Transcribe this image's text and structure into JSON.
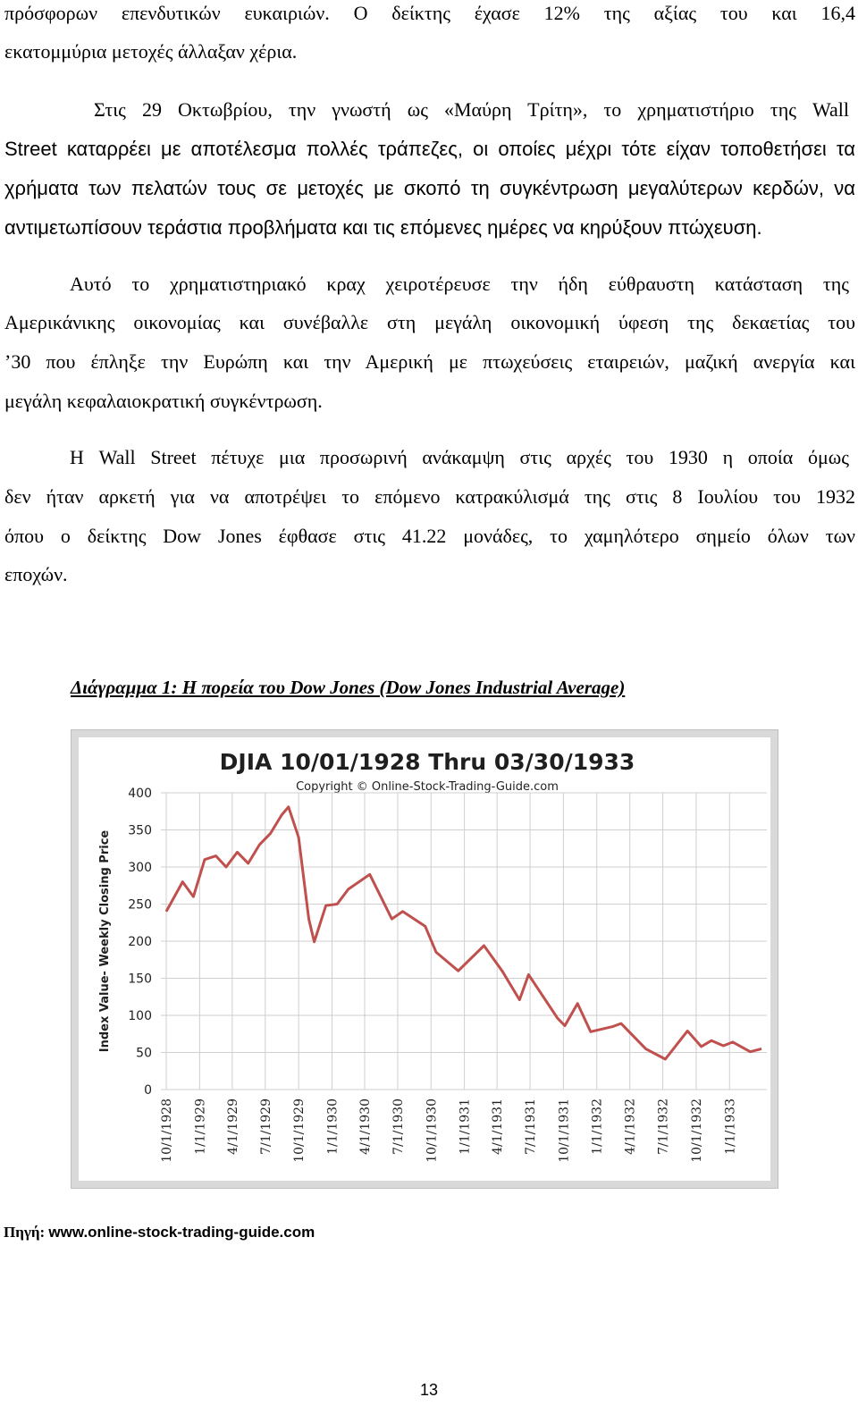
{
  "body": {
    "lines": [
      "πρόσφορων επενδυτικών ευκαιριών. Ο δείκτης έχασε 12% της αξίας του και 16,4",
      "εκατομμύρια μετοχές άλλαξαν χέρια.",
      "Στις 29 Οκτωβρίου, την γνωστή ως «Μαύρη Τρίτη», το χρηματιστήριο της Wall",
      "Street καταρρέει με αποτέλεσμα πολλές τράπεζες, οι οποίες μέχρι τότε είχαν τοποθετήσει τα",
      "χρήματα των πελατών τους σε μετοχές με σκοπό τη συγκέντρωση μεγαλύτερων κερδών, να",
      "αντιμετωπίσουν τεράστια προβλήματα και τις επόμενες ημέρες να κηρύξουν πτώχευση.",
      "Αυτό το χρηματιστηριακό κραχ χειροτέρευσε την ήδη εύθραυστη κατάσταση της",
      "Αμερικάνικης οικονομίας και συνέβαλλε στη μεγάλη οικονομική ύφεση της δεκαετίας του",
      "’30 που έπληξε την Ευρώπη και την Αμερική με πτωχεύσεις εταιρειών, μαζική ανεργία και",
      "μεγάλη κεφαλαιοκρατική συγκέντρωση.",
      "Η Wall Street πέτυχε μια προσωρινή ανάκαμψη στις αρχές του 1930 η οποία όμως",
      "δεν ήταν αρκετή για να αποτρέψει το επόμενο κατρακύλισμά της στις 8 Ιουλίου του 1932",
      "όπου ο δείκτης Dow Jones έφθασε στις 41.22 μονάδες, το χαμηλότερο σημείο όλων των",
      "εποχών."
    ]
  },
  "figure": {
    "caption": "Διάγραμμα 1: Η πορεία του Dow Jones (Dow Jones Industrial Average)",
    "source_label": "Πηγή:",
    "source_url": "www.online-stock-trading-guide.com"
  },
  "page_number": "13",
  "chart_data": {
    "type": "line",
    "title": "DJIA 10/01/1928 Thru 03/30/1933",
    "subtitle": "Copyright © Online-Stock-Trading-Guide.com",
    "xlabel": "",
    "ylabel": "Index Value- Weekly Closing Price",
    "ylim": [
      0,
      400
    ],
    "yticks": [
      0,
      50,
      100,
      150,
      200,
      250,
      300,
      350,
      400
    ],
    "xlim": [
      "1928-10-01",
      "1933-03-30"
    ],
    "xtick_labels": [
      "10/1/1928",
      "1/1/1929",
      "4/1/1929",
      "7/1/1929",
      "10/1/1929",
      "1/1/1930",
      "4/1/1930",
      "7/1/1930",
      "10/1/1930",
      "1/1/1931",
      "4/1/1931",
      "7/1/1931",
      "10/1/1931",
      "1/1/1932",
      "4/1/1932",
      "7/1/1932",
      "10/1/1932",
      "1/1/1933"
    ],
    "grid": true,
    "line_color": "#c0504d",
    "series": [
      {
        "x": [
          "1928-10-01",
          "1928-11-15",
          "1928-12-15",
          "1929-01-15",
          "1929-02-15",
          "1929-03-15",
          "1929-04-15",
          "1929-05-15",
          "1929-06-15",
          "1929-07-15",
          "1929-08-15",
          "1929-09-03",
          "1929-10-01",
          "1929-10-29",
          "1929-11-13",
          "1929-12-15",
          "1930-01-15",
          "1930-02-15",
          "1930-04-15",
          "1930-06-15",
          "1930-07-15",
          "1930-09-15",
          "1930-10-15",
          "1930-12-15",
          "1931-02-24",
          "1931-04-15",
          "1931-06-02",
          "1931-06-27",
          "1931-09-15",
          "1931-10-05",
          "1931-11-09",
          "1931-12-15",
          "1932-02-15",
          "1932-03-08",
          "1932-05-15",
          "1932-07-08",
          "1932-09-07",
          "1932-10-15",
          "1932-11-12",
          "1932-12-15",
          "1933-01-10",
          "1933-02-27",
          "1933-03-30"
        ],
        "y": [
          240,
          280,
          260,
          310,
          315,
          300,
          320,
          305,
          330,
          345,
          370,
          381,
          340,
          230,
          199,
          248,
          250,
          270,
          290,
          230,
          240,
          220,
          185,
          160,
          194,
          160,
          121,
          155,
          96,
          86,
          116,
          78,
          85,
          89,
          55,
          41,
          79,
          58,
          66,
          59,
          64,
          51,
          55
        ]
      }
    ]
  }
}
